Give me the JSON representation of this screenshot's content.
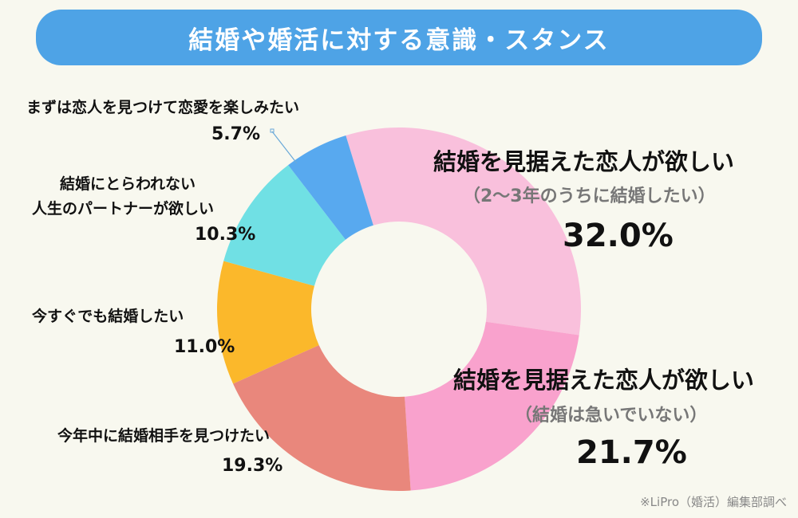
{
  "chart_data": {
    "type": "pie",
    "variant": "donut",
    "title": "結婚や婚活に対する意識・スタンス",
    "start_angle_deg": -17,
    "direction": "clockwise",
    "slices": [
      {
        "label": "結婚を見据えた恋人が欲しい",
        "sublabel": "（2〜3年のうちに結婚したい）",
        "value": 32.0,
        "display": "32.0%",
        "color": "#f9c0dc"
      },
      {
        "label": "結婚を見据えた恋人が欲しい",
        "sublabel": "（結婚は急いでいない）",
        "value": 21.7,
        "display": "21.7%",
        "color": "#f9a2cd"
      },
      {
        "label": "今年中に結婚相手を見つけたい",
        "value": 19.3,
        "display": "19.3%",
        "color": "#e9877c"
      },
      {
        "label": "今すぐでも結婚したい",
        "value": 11.0,
        "display": "11.0%",
        "color": "#fbb82b"
      },
      {
        "label_lines": [
          "結婚にとらわれない",
          "人生のパートナーが欲しい"
        ],
        "value": 10.3,
        "display": "10.3%",
        "color": "#70e0e4"
      },
      {
        "label": "まずは恋人を見つけて恋愛を楽しみたい",
        "value": 5.7,
        "display": "5.7%",
        "color": "#58a9ef"
      }
    ],
    "source": "※LiPro（婚活）編集部調べ"
  }
}
